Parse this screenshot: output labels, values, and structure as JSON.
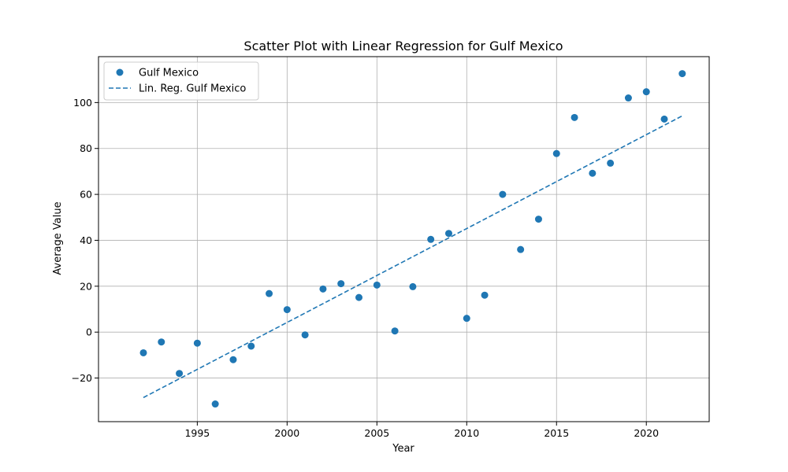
{
  "chart_data": {
    "type": "scatter",
    "title": "Scatter Plot with Linear Regression for Gulf Mexico",
    "xlabel": "Year",
    "ylabel": "Average Value",
    "xlim": [
      1989.5,
      2023.5
    ],
    "ylim": [
      -39,
      120
    ],
    "xticks": [
      1995,
      2000,
      2005,
      2010,
      2015,
      2020
    ],
    "yticks": [
      -20,
      0,
      20,
      40,
      60,
      80,
      100
    ],
    "grid": true,
    "legend_position": "top-left",
    "series": [
      {
        "name": "Gulf Mexico",
        "kind": "scatter",
        "color": "#1f77b4",
        "x": [
          1992,
          1993,
          1994,
          1995,
          1996,
          1997,
          1998,
          1999,
          2000,
          2001,
          2002,
          2003,
          2004,
          2005,
          2006,
          2007,
          2008,
          2009,
          2010,
          2011,
          2012,
          2013,
          2014,
          2015,
          2016,
          2017,
          2018,
          2019,
          2020,
          2021,
          2022
        ],
        "y": [
          -9,
          -4.3,
          -18,
          -4.8,
          -31.3,
          -12,
          -6.1,
          16.8,
          9.8,
          -1.2,
          18.8,
          21.1,
          15.1,
          20.5,
          0.5,
          19.8,
          40.4,
          43,
          6,
          16.1,
          60,
          36,
          49.2,
          77.8,
          93.5,
          69.2,
          73.6,
          102,
          104.7,
          92.8,
          112.6
        ]
      },
      {
        "name": "Lin. Reg. Gulf Mexico",
        "kind": "line",
        "style": "dashed",
        "color": "#1f77b4",
        "x": [
          1992,
          2022
        ],
        "y": [
          -28.5,
          94.2
        ]
      }
    ]
  }
}
